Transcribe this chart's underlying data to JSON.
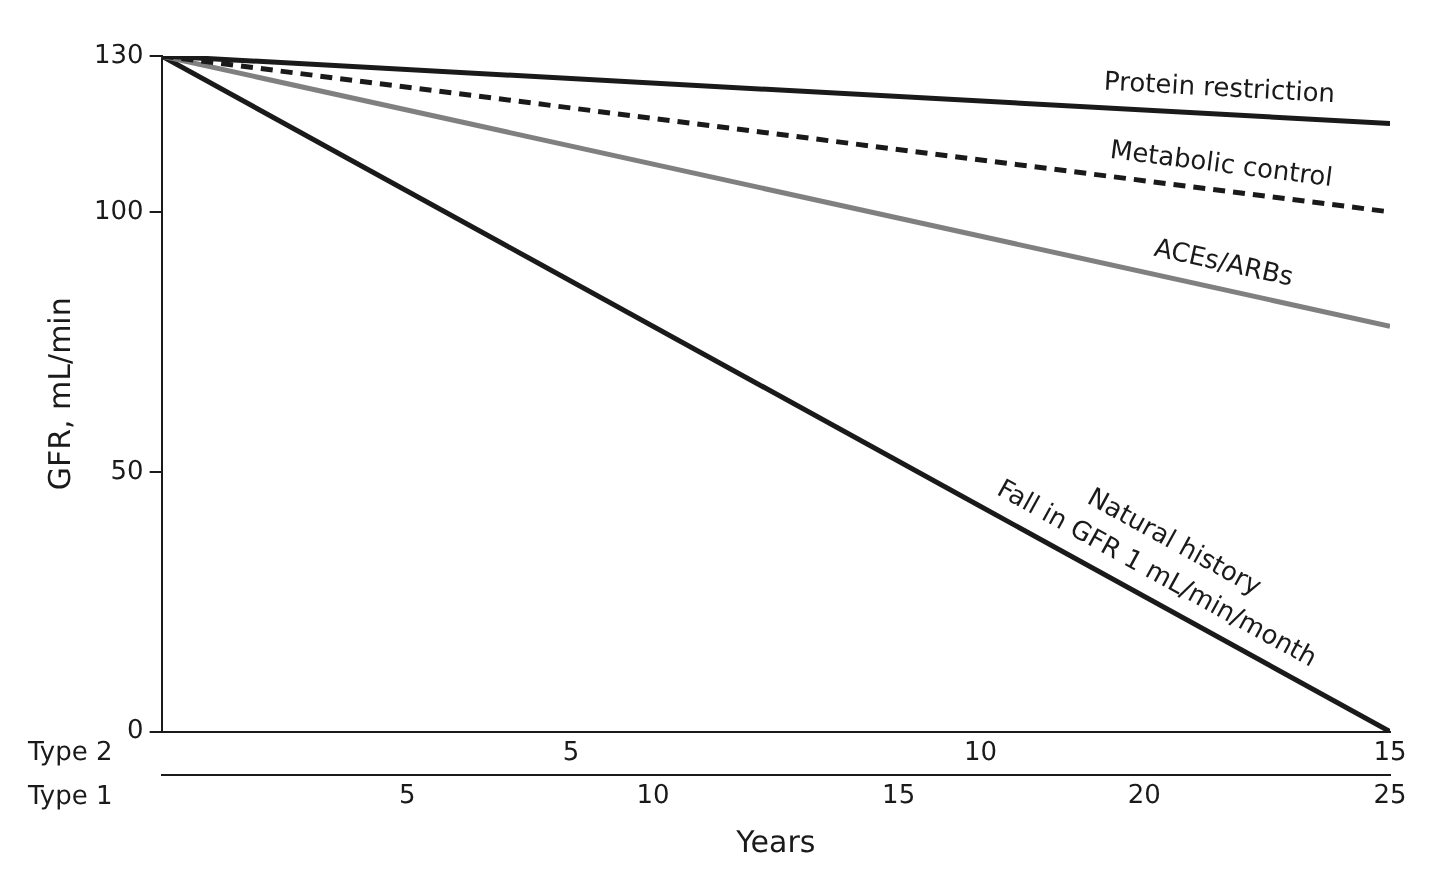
{
  "chart_data": {
    "type": "line",
    "ylabel": "GFR, mL/min",
    "xlabel": "Years",
    "xlim": [
      0,
      25
    ],
    "xticks": [
      5,
      10,
      15,
      20,
      25
    ],
    "x2lim": [
      0,
      15
    ],
    "x2ticks": [
      5,
      10,
      15
    ],
    "ylim": [
      0,
      130
    ],
    "yticks": [
      0,
      50,
      100,
      130
    ],
    "grid": false,
    "legend": false,
    "marker": "none",
    "x": [
      0,
      25
    ],
    "annotations": [
      "Type 2",
      "Type 1",
      "Fall in GFR 1 mL/min/month"
    ],
    "series": [
      {
        "name": "Protein restriction",
        "color": "#1a1a1a",
        "line_style": "solid",
        "values": [
          130,
          117
        ]
      },
      {
        "name": "Metabolic control",
        "color": "#1a1a1a",
        "line_style": "dashed",
        "values": [
          130,
          100
        ]
      },
      {
        "name": "ACEs/ARBs",
        "color": "#808080",
        "line_style": "solid",
        "values": [
          130,
          78
        ]
      },
      {
        "name": "Natural history",
        "color": "#1a1a1a",
        "line_style": "solid",
        "values": [
          130,
          0
        ]
      }
    ]
  }
}
